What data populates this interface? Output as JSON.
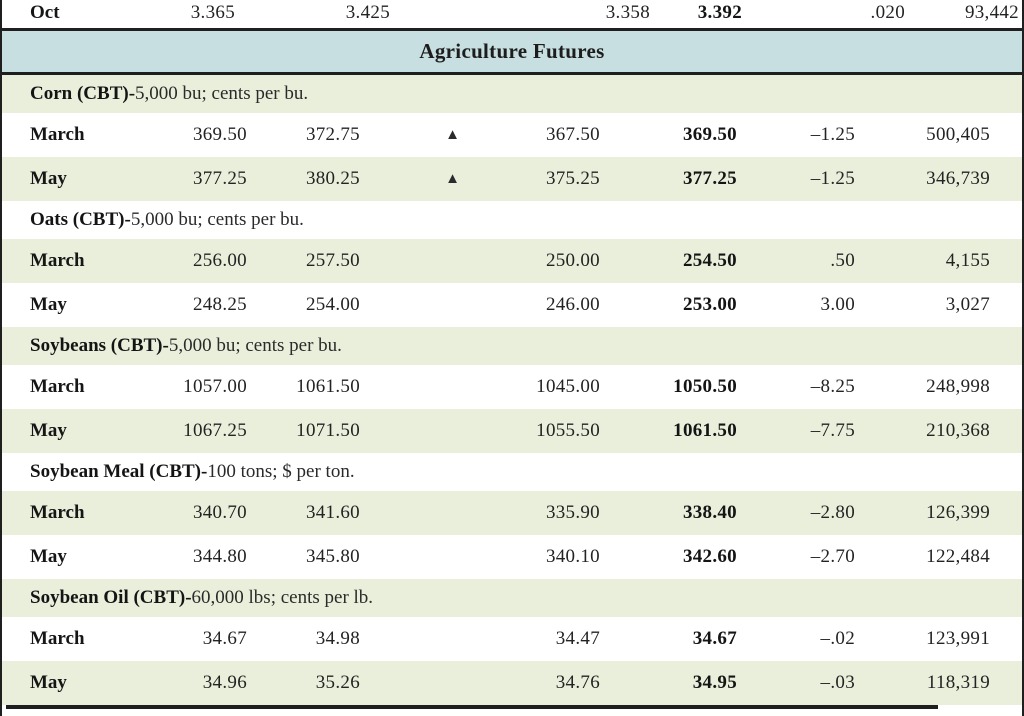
{
  "colors": {
    "banner_blue": "#c7dfe0",
    "stripe_green": "#e9efdb",
    "border": "#1f1f1f"
  },
  "banner": {
    "title": "Agriculture Futures"
  },
  "clipped_row": {
    "month": "Oct",
    "open": "3.365",
    "high": "3.425",
    "low": "3.358",
    "settle": "3.392",
    "change": ".020",
    "open_interest": "93,442"
  },
  "sections": [
    {
      "name": "Corn (CBT)-",
      "unit": "5,000 bu; cents per bu.",
      "rows": [
        {
          "month": "March",
          "open": "369.50",
          "high": "372.75",
          "arrow": "▲",
          "low": "367.50",
          "settle": "369.50",
          "change": "–1.25",
          "open_interest": "500,405"
        },
        {
          "month": "May",
          "open": "377.25",
          "high": "380.25",
          "arrow": "▲",
          "low": "375.25",
          "settle": "377.25",
          "change": "–1.25",
          "open_interest": "346,739"
        }
      ]
    },
    {
      "name": "Oats (CBT)-",
      "unit": "5,000 bu; cents per bu.",
      "rows": [
        {
          "month": "March",
          "open": "256.00",
          "high": "257.50",
          "arrow": "",
          "low": "250.00",
          "settle": "254.50",
          "change": ".50",
          "open_interest": "4,155"
        },
        {
          "month": "May",
          "open": "248.25",
          "high": "254.00",
          "arrow": "",
          "low": "246.00",
          "settle": "253.00",
          "change": "3.00",
          "open_interest": "3,027"
        }
      ]
    },
    {
      "name": "Soybeans (CBT)-",
      "unit": "5,000 bu; cents per bu.",
      "rows": [
        {
          "month": "March",
          "open": "1057.00",
          "high": "1061.50",
          "arrow": "",
          "low": "1045.00",
          "settle": "1050.50",
          "change": "–8.25",
          "open_interest": "248,998"
        },
        {
          "month": "May",
          "open": "1067.25",
          "high": "1071.50",
          "arrow": "",
          "low": "1055.50",
          "settle": "1061.50",
          "change": "–7.75",
          "open_interest": "210,368"
        }
      ]
    },
    {
      "name": "Soybean Meal (CBT)-",
      "unit": "100 tons; $ per ton.",
      "rows": [
        {
          "month": "March",
          "open": "340.70",
          "high": "341.60",
          "arrow": "",
          "low": "335.90",
          "settle": "338.40",
          "change": "–2.80",
          "open_interest": "126,399"
        },
        {
          "month": "May",
          "open": "344.80",
          "high": "345.80",
          "arrow": "",
          "low": "340.10",
          "settle": "342.60",
          "change": "–2.70",
          "open_interest": "122,484"
        }
      ]
    },
    {
      "name": "Soybean Oil (CBT)-",
      "unit": "60,000 lbs; cents per lb.",
      "rows": [
        {
          "month": "March",
          "open": "34.67",
          "high": "34.98",
          "arrow": "",
          "low": "34.47",
          "settle": "34.67",
          "change": "–.02",
          "open_interest": "123,991"
        },
        {
          "month": "May",
          "open": "34.96",
          "high": "35.26",
          "arrow": "",
          "low": "34.76",
          "settle": "34.95",
          "change": "–.03",
          "open_interest": "118,319"
        }
      ]
    }
  ]
}
